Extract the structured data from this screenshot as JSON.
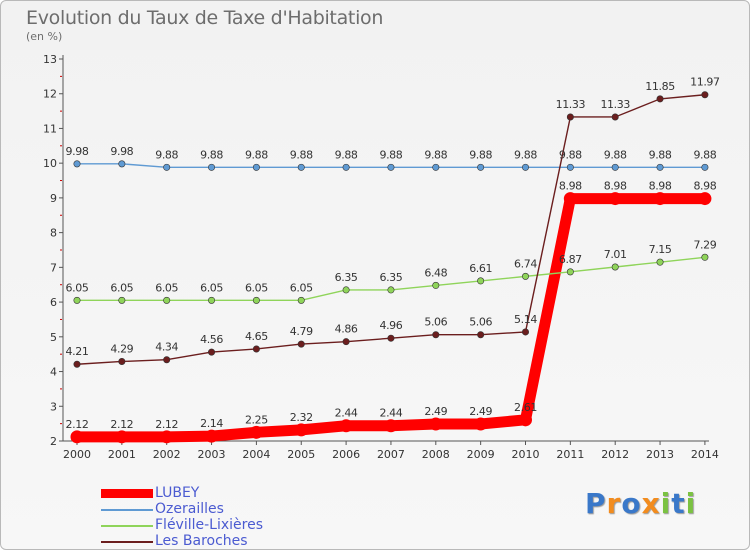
{
  "header": {
    "title": "Evolution du Taux de Taxe d'Habitation",
    "unit": "(en %)"
  },
  "brand": {
    "text": "Proxiti",
    "letters": [
      "P",
      "r",
      "o",
      "x",
      "i",
      "t",
      "i"
    ],
    "colors": [
      "#3a78c9",
      "#f28c1e",
      "#3a78c9",
      "#f28c1e",
      "#7bc242",
      "#3a78c9",
      "#7bc242"
    ]
  },
  "chart_data": {
    "type": "line",
    "title": "Evolution du Taux de Taxe d'Habitation",
    "ylabel": "(en %)",
    "xlabel": "",
    "x": [
      "2000",
      "2001",
      "2002",
      "2003",
      "2004",
      "2005",
      "2006",
      "2007",
      "2008",
      "2009",
      "2010",
      "2011",
      "2012",
      "2013",
      "2014"
    ],
    "ylim": [
      2,
      13
    ],
    "yticks": [
      2,
      3,
      4,
      5,
      6,
      7,
      8,
      9,
      10,
      11,
      12,
      13
    ],
    "grid": false,
    "legend_position": "bottom-left",
    "series": [
      {
        "name": "LUBEY",
        "color": "#ff0000",
        "emphasis": true,
        "values": [
          2.12,
          2.12,
          2.12,
          2.14,
          2.25,
          2.32,
          2.44,
          2.44,
          2.49,
          2.49,
          2.61,
          8.98,
          8.98,
          8.98,
          8.98
        ],
        "labels": [
          "2.12",
          "2.12",
          "2.12",
          "2.14",
          "2.25",
          "2.32",
          "2.44",
          "2.44",
          "2.49",
          "2.49",
          "2.61",
          "8.98",
          "8.98",
          "8.98",
          "8.98"
        ]
      },
      {
        "name": "Ozerailles",
        "color": "#5f9ad3",
        "emphasis": false,
        "values": [
          9.98,
          9.98,
          9.88,
          9.88,
          9.88,
          9.88,
          9.88,
          9.88,
          9.88,
          9.88,
          9.88,
          9.88,
          9.88,
          9.88,
          9.88
        ],
        "labels": [
          "9.98",
          "9.98",
          "9.88",
          "9.88",
          "9.88",
          "9.88",
          "9.88",
          "9.88",
          "9.88",
          "9.88",
          "9.88",
          "9.88",
          "9.88",
          "9.88",
          "9.88"
        ]
      },
      {
        "name": "Fléville-Lixières",
        "color": "#8fd45a",
        "emphasis": false,
        "values": [
          6.05,
          6.05,
          6.05,
          6.05,
          6.05,
          6.05,
          6.35,
          6.35,
          6.48,
          6.61,
          6.74,
          6.87,
          7.01,
          7.15,
          7.29
        ],
        "labels": [
          "6.05",
          "6.05",
          "6.05",
          "6.05",
          "6.05",
          "6.05",
          "6.35",
          "6.35",
          "6.48",
          "6.61",
          "6.74",
          "6.87",
          "7.01",
          "7.15",
          "7.29"
        ]
      },
      {
        "name": "Les Baroches",
        "color": "#6b1e1e",
        "emphasis": false,
        "values": [
          4.21,
          4.29,
          4.34,
          4.56,
          4.65,
          4.79,
          4.86,
          4.96,
          5.06,
          5.06,
          5.14,
          11.33,
          11.33,
          11.85,
          11.97
        ],
        "labels": [
          "4.21",
          "4.29",
          "4.34",
          "4.56",
          "4.65",
          "4.79",
          "4.86",
          "4.96",
          "5.06",
          "5.06",
          "5.14",
          "11.33",
          "11.33",
          "11.85",
          "11.97"
        ]
      }
    ]
  }
}
